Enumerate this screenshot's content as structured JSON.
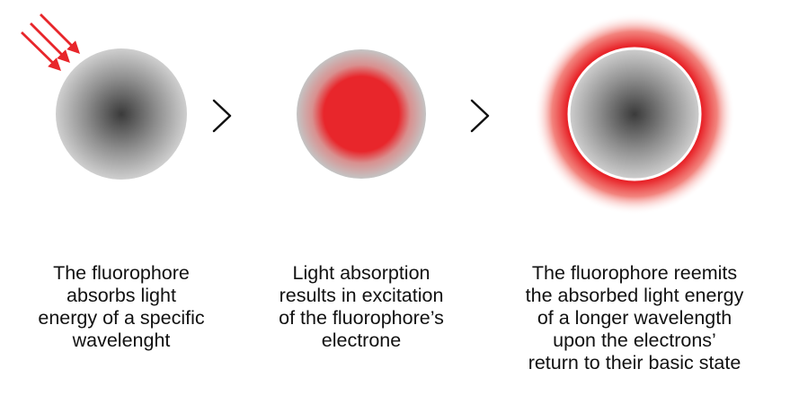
{
  "colors": {
    "accent_red": "#e8262b",
    "sphere_light": "#cfcfcf",
    "sphere_dark": "#3a3a3a",
    "arrow_stroke": "#111111"
  },
  "icons": {
    "incoming_light": "triple-red-arrow-icon",
    "step_separator": "chevron-right-icon"
  },
  "steps": [
    {
      "caption_lines": [
        "The fluorophore",
        "absorbs light",
        "energy of a specific",
        "wavelenght"
      ]
    },
    {
      "caption_lines": [
        "Light absorption",
        "results in excitation",
        "of the fluorophore’s",
        "electrone"
      ]
    },
    {
      "caption_lines": [
        "The fluorophore reemits",
        "the absorbed light energy",
        "of a longer wavelength",
        "upon the electrons’",
        "return to their basic state"
      ]
    }
  ]
}
